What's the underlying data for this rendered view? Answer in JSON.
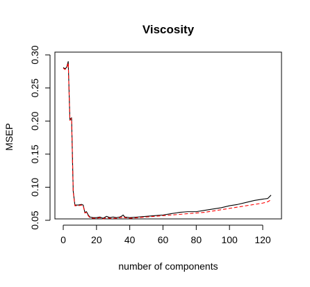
{
  "chart_data": {
    "type": "line",
    "title": "Viscosity",
    "xlabel": "number of components",
    "ylabel": "MSEP",
    "xlim": [
      0,
      126
    ],
    "ylim": [
      0.05,
      0.3
    ],
    "x_ticks": [
      0,
      20,
      40,
      60,
      80,
      100,
      120
    ],
    "x_tick_labels": [
      "0",
      "20",
      "40",
      "60",
      "80",
      "100",
      "120"
    ],
    "y_ticks": [
      0.05,
      0.1,
      0.15,
      0.2,
      0.25,
      0.3
    ],
    "y_tick_labels": [
      "0.05",
      "0.10",
      "0.15",
      "0.20",
      "0.25",
      "0.30"
    ],
    "grid": false,
    "series": [
      {
        "color": "#000000",
        "dash": "solid",
        "points": [
          [
            0,
            0.281
          ],
          [
            1,
            0.279
          ],
          [
            2,
            0.281
          ],
          [
            3,
            0.29
          ],
          [
            4,
            0.202
          ],
          [
            5,
            0.205
          ],
          [
            6,
            0.094
          ],
          [
            7,
            0.073
          ],
          [
            9,
            0.073
          ],
          [
            11,
            0.074
          ],
          [
            12,
            0.073
          ],
          [
            13,
            0.062
          ],
          [
            14,
            0.063
          ],
          [
            15,
            0.058
          ],
          [
            16,
            0.055
          ],
          [
            18,
            0.054
          ],
          [
            20,
            0.054
          ],
          [
            22,
            0.055
          ],
          [
            24,
            0.053
          ],
          [
            26,
            0.056
          ],
          [
            28,
            0.054
          ],
          [
            30,
            0.055
          ],
          [
            32,
            0.054
          ],
          [
            34,
            0.055
          ],
          [
            35,
            0.056
          ],
          [
            36,
            0.058
          ],
          [
            37,
            0.055
          ],
          [
            40,
            0.054
          ],
          [
            45,
            0.055
          ],
          [
            50,
            0.056
          ],
          [
            55,
            0.057
          ],
          [
            60,
            0.058
          ],
          [
            65,
            0.06
          ],
          [
            70,
            0.062
          ],
          [
            75,
            0.063
          ],
          [
            80,
            0.063
          ],
          [
            85,
            0.065
          ],
          [
            90,
            0.067
          ],
          [
            95,
            0.069
          ],
          [
            100,
            0.072
          ],
          [
            105,
            0.074
          ],
          [
            110,
            0.077
          ],
          [
            115,
            0.08
          ],
          [
            120,
            0.082
          ],
          [
            123,
            0.083
          ],
          [
            125,
            0.088
          ]
        ]
      },
      {
        "color": "#ff0000",
        "dash": "dashed",
        "points": [
          [
            0,
            0.28
          ],
          [
            1,
            0.278
          ],
          [
            2,
            0.28
          ],
          [
            3,
            0.288
          ],
          [
            4,
            0.201
          ],
          [
            5,
            0.204
          ],
          [
            6,
            0.093
          ],
          [
            7,
            0.072
          ],
          [
            9,
            0.072
          ],
          [
            11,
            0.073
          ],
          [
            12,
            0.072
          ],
          [
            13,
            0.061
          ],
          [
            14,
            0.062
          ],
          [
            15,
            0.057
          ],
          [
            16,
            0.054
          ],
          [
            18,
            0.053
          ],
          [
            20,
            0.053
          ],
          [
            22,
            0.054
          ],
          [
            24,
            0.052
          ],
          [
            26,
            0.054
          ],
          [
            28,
            0.053
          ],
          [
            30,
            0.053
          ],
          [
            32,
            0.053
          ],
          [
            34,
            0.054
          ],
          [
            35,
            0.054
          ],
          [
            36,
            0.056
          ],
          [
            37,
            0.054
          ],
          [
            40,
            0.053
          ],
          [
            45,
            0.054
          ],
          [
            50,
            0.055
          ],
          [
            55,
            0.056
          ],
          [
            60,
            0.057
          ],
          [
            65,
            0.058
          ],
          [
            70,
            0.059
          ],
          [
            75,
            0.06
          ],
          [
            80,
            0.061
          ],
          [
            85,
            0.062
          ],
          [
            90,
            0.064
          ],
          [
            95,
            0.066
          ],
          [
            100,
            0.068
          ],
          [
            105,
            0.07
          ],
          [
            110,
            0.072
          ],
          [
            115,
            0.074
          ],
          [
            120,
            0.076
          ],
          [
            123,
            0.078
          ],
          [
            125,
            0.081
          ]
        ]
      }
    ]
  }
}
